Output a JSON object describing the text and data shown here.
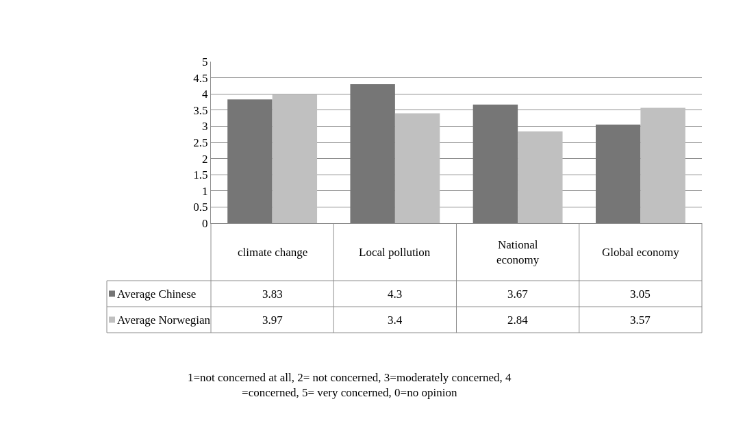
{
  "chart_data": {
    "type": "bar",
    "categories": [
      "climate change",
      "Local pollution",
      "National economy",
      "Global economy"
    ],
    "series": [
      {
        "name": "Average Chinese",
        "color": "#767676",
        "values": [
          3.83,
          4.3,
          3.67,
          3.05
        ]
      },
      {
        "name": "Average Norwegian",
        "color": "#c0c0c0",
        "values": [
          3.97,
          3.4,
          2.84,
          3.57
        ]
      }
    ],
    "ylim": [
      0,
      5
    ],
    "yticks": [
      0,
      0.5,
      1,
      1.5,
      2,
      2.5,
      3,
      3.5,
      4,
      4.5,
      5
    ],
    "grid": "y",
    "data_labels": true,
    "legend": "bottom left",
    "annotations": [
      "1=not concerned at all, 2= not concerned, 3=moderately concerned, 4 =concerned, 5= very concerned, 0=no opinion"
    ]
  }
}
